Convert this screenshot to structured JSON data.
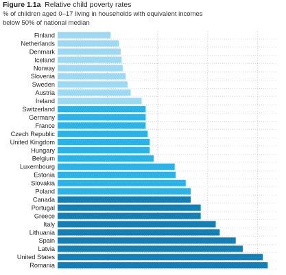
{
  "header": {
    "figure_label": "Figure 1.1a",
    "title": "Relative child poverty rates",
    "subtitle_line1": "% of children aged 0–17 living in households with equivalent incomes",
    "subtitle_line2": "below 50% of national median"
  },
  "chart_data": {
    "type": "bar",
    "orientation": "horizontal",
    "title": "Relative child poverty rates",
    "subtitle": "% of children aged 0–17 living in households with equivalent incomes below 50% of national median",
    "categories": [
      "Finland",
      "Netherlands",
      "Denmark",
      "Iceland",
      "Norway",
      "Slovenia",
      "Sweden",
      "Austria",
      "Ireland",
      "Switzerland",
      "Germany",
      "France",
      "Czech Republic",
      "United Kingdom",
      "Hungary",
      "Belgium",
      "Luxembourg",
      "Estonia",
      "Slovakia",
      "Poland",
      "Canada",
      "Portugal",
      "Greece",
      "Italy",
      "Lithuania",
      "Spain",
      "Latvia",
      "United States",
      "Romania"
    ],
    "values": [
      5.3,
      6.1,
      6.3,
      6.4,
      6.5,
      6.8,
      7.0,
      7.3,
      8.4,
      8.8,
      8.8,
      8.8,
      9.0,
      9.2,
      9.2,
      9.6,
      11.7,
      11.8,
      12.8,
      13.3,
      13.3,
      14.3,
      14.3,
      15.8,
      16.2,
      17.8,
      18.5,
      20.5,
      21.0
    ],
    "xlim": [
      0,
      22
    ],
    "grid": true,
    "legend": "none",
    "colors": {
      "light": "#9ed9f4",
      "medium": "#2cb2e6",
      "dark": "#137fb4",
      "grid": "#c8c8c8"
    },
    "color_groups": [
      "light",
      "light",
      "light",
      "light",
      "light",
      "light",
      "light",
      "light",
      "light",
      "medium",
      "medium",
      "medium",
      "medium",
      "medium",
      "medium",
      "medium",
      "medium",
      "medium",
      "medium",
      "medium",
      "dark",
      "dark",
      "dark",
      "dark",
      "dark",
      "dark",
      "dark",
      "dark",
      "dark"
    ]
  }
}
